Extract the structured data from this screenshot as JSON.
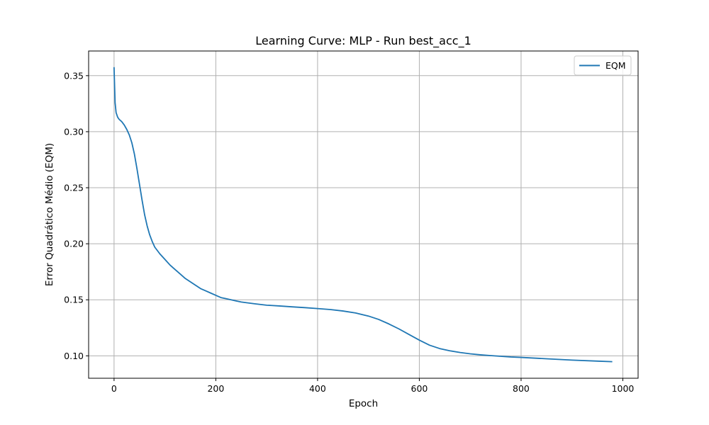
{
  "chart_data": {
    "type": "line",
    "title": "Learning Curve: MLP - Run best_acc_1",
    "xlabel": "Epoch",
    "ylabel": "Error Quadrático Médio (EQM)",
    "xlim": [
      -50,
      1030
    ],
    "ylim": [
      0.08,
      0.372
    ],
    "xticks": [
      0,
      200,
      400,
      600,
      800,
      1000
    ],
    "yticks": [
      0.1,
      0.15,
      0.2,
      0.25,
      0.3,
      0.35
    ],
    "xtick_labels": [
      "0",
      "200",
      "400",
      "600",
      "800",
      "1000"
    ],
    "ytick_labels": [
      "0.10",
      "0.15",
      "0.20",
      "0.25",
      "0.30",
      "0.35"
    ],
    "grid": true,
    "legend_position": "top-right",
    "series": [
      {
        "name": "EQM",
        "color": "#1f77b4",
        "x": [
          0,
          2,
          4,
          7,
          10,
          15,
          20,
          25,
          30,
          35,
          40,
          45,
          50,
          55,
          60,
          65,
          70,
          75,
          80,
          85,
          90,
          100,
          110,
          120,
          130,
          140,
          150,
          160,
          170,
          180,
          190,
          200,
          210,
          220,
          230,
          240,
          250,
          275,
          300,
          325,
          350,
          375,
          400,
          425,
          450,
          475,
          500,
          520,
          540,
          560,
          580,
          600,
          620,
          640,
          660,
          680,
          700,
          720,
          740,
          760,
          780,
          800,
          850,
          900,
          950,
          978
        ],
        "y": [
          0.357,
          0.326,
          0.317,
          0.313,
          0.311,
          0.309,
          0.306,
          0.302,
          0.297,
          0.29,
          0.28,
          0.267,
          0.253,
          0.239,
          0.226,
          0.216,
          0.208,
          0.202,
          0.197,
          0.194,
          0.191,
          0.186,
          0.181,
          0.177,
          0.173,
          0.169,
          0.166,
          0.163,
          0.16,
          0.158,
          0.156,
          0.154,
          0.152,
          0.151,
          0.15,
          0.149,
          0.148,
          0.1465,
          0.1452,
          0.1445,
          0.1437,
          0.143,
          0.1422,
          0.1413,
          0.14,
          0.1382,
          0.1355,
          0.1325,
          0.1285,
          0.124,
          0.119,
          0.114,
          0.1095,
          0.1065,
          0.1045,
          0.103,
          0.1018,
          0.1009,
          0.1002,
          0.0996,
          0.099,
          0.0986,
          0.0974,
          0.0962,
          0.0953,
          0.0948
        ]
      }
    ]
  }
}
